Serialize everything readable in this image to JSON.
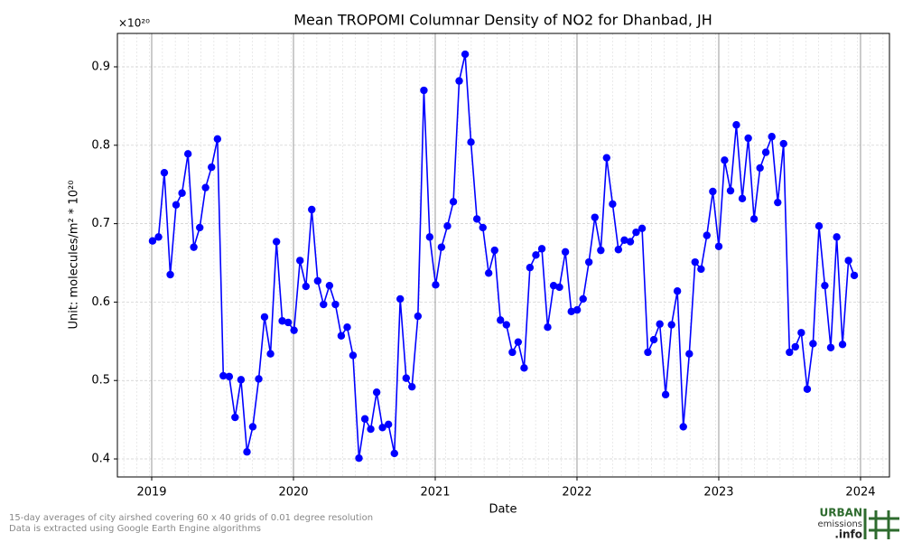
{
  "chart_data": {
    "type": "line",
    "title": "Mean TROPOMI Columnar Density of NO2 for Dhanbad, JH",
    "x_label": "Date",
    "y_label": "Unit: molecules/m² * 10²⁰",
    "y_multiplier": "×10²⁰",
    "color": "#0000ff",
    "grid": true,
    "xlim": [
      2018.758,
      2024.204
    ],
    "xticks": [
      2019,
      2020,
      2021,
      2022,
      2023,
      2024
    ],
    "ylim": [
      0.377,
      0.9426
    ],
    "yticks": [
      0.4,
      0.5,
      0.6,
      0.7,
      0.8,
      0.9
    ],
    "x": [
      2019.006,
      2019.048,
      2019.089,
      2019.131,
      2019.172,
      2019.214,
      2019.256,
      2019.297,
      2019.339,
      2019.38,
      2019.422,
      2019.464,
      2019.505,
      2019.547,
      2019.588,
      2019.63,
      2019.672,
      2019.713,
      2019.755,
      2019.796,
      2019.838,
      2019.88,
      2019.921,
      2019.963,
      2020.004,
      2020.046,
      2020.088,
      2020.129,
      2020.171,
      2020.212,
      2020.254,
      2020.296,
      2020.337,
      2020.379,
      2020.42,
      2020.462,
      2020.504,
      2020.545,
      2020.587,
      2020.628,
      2020.67,
      2020.712,
      2020.753,
      2020.795,
      2020.836,
      2020.878,
      2020.92,
      2020.961,
      2021.003,
      2021.044,
      2021.086,
      2021.128,
      2021.169,
      2021.211,
      2021.252,
      2021.294,
      2021.336,
      2021.377,
      2021.419,
      2021.46,
      2021.502,
      2021.544,
      2021.585,
      2021.627,
      2021.668,
      2021.71,
      2021.752,
      2021.793,
      2021.835,
      2021.876,
      2021.918,
      2021.96,
      2022.001,
      2022.043,
      2022.084,
      2022.126,
      2022.168,
      2022.209,
      2022.251,
      2022.292,
      2022.334,
      2022.376,
      2022.417,
      2022.459,
      2022.5,
      2022.542,
      2022.584,
      2022.625,
      2022.667,
      2022.708,
      2022.75,
      2022.792,
      2022.833,
      2022.875,
      2022.916,
      2022.958,
      2023.0,
      2023.041,
      2023.083,
      2023.124,
      2023.166,
      2023.208,
      2023.249,
      2023.291,
      2023.332,
      2023.374,
      2023.416,
      2023.457,
      2023.499,
      2023.54,
      2023.582,
      2023.624,
      2023.665,
      2023.707,
      2023.748,
      2023.79,
      2023.832,
      2023.873,
      2023.915,
      2023.956
    ],
    "values": [
      0.678,
      0.683,
      0.765,
      0.635,
      0.724,
      0.739,
      0.789,
      0.67,
      0.695,
      0.746,
      0.772,
      0.808,
      0.506,
      0.505,
      0.453,
      0.501,
      0.409,
      0.441,
      0.502,
      0.581,
      0.534,
      0.677,
      0.576,
      0.574,
      0.564,
      0.653,
      0.62,
      0.718,
      0.627,
      0.597,
      0.621,
      0.597,
      0.557,
      0.568,
      0.532,
      0.401,
      0.451,
      0.438,
      0.485,
      0.44,
      0.444,
      0.407,
      0.604,
      0.503,
      0.492,
      0.582,
      0.87,
      0.683,
      0.622,
      0.67,
      0.697,
      0.728,
      0.882,
      0.916,
      0.804,
      0.706,
      0.695,
      0.637,
      0.666,
      0.577,
      0.571,
      0.536,
      0.549,
      0.516,
      0.644,
      0.66,
      0.668,
      0.568,
      0.621,
      0.619,
      0.664,
      0.588,
      0.59,
      0.604,
      0.651,
      0.708,
      0.666,
      0.784,
      0.725,
      0.667,
      0.679,
      0.677,
      0.689,
      0.694,
      0.536,
      0.552,
      0.572,
      0.482,
      0.571,
      0.614,
      0.441,
      0.534,
      0.651,
      0.642,
      0.685,
      0.741,
      0.671,
      0.781,
      0.742,
      0.826,
      0.732,
      0.809,
      0.706,
      0.771,
      0.791,
      0.811,
      0.727,
      0.802,
      0.536,
      0.543,
      0.561,
      0.489,
      0.547,
      0.697,
      0.621,
      0.542,
      0.683,
      0.546,
      0.653,
      0.634
    ]
  },
  "notes": [
    "15-day averages of city airshed covering 60 x 40 grids of 0.01 degree resolution",
    "Data is extracted using Google Earth Engine algorithms"
  ],
  "logo": {
    "line1": "URBAN",
    "line2": "emissions",
    "line3": ".info"
  }
}
